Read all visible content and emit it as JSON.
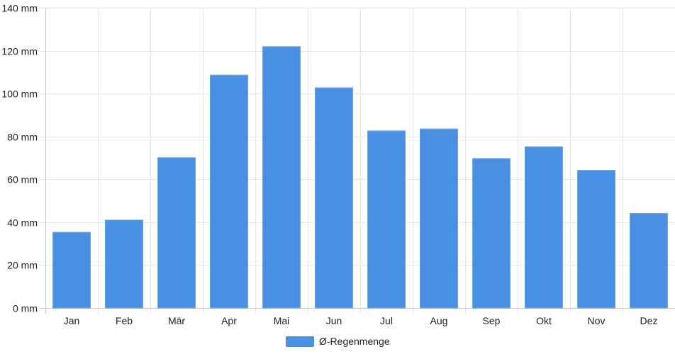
{
  "chart_data": {
    "type": "bar",
    "title": "",
    "xlabel": "",
    "ylabel": "",
    "y_unit": "mm",
    "categories": [
      "Jan",
      "Feb",
      "Mär",
      "Apr",
      "Mai",
      "Jun",
      "Jul",
      "Aug",
      "Sep",
      "Okt",
      "Nov",
      "Dez"
    ],
    "series": [
      {
        "name": "Ø-Regenmenge",
        "color": "#4a90e2",
        "values": [
          35.3,
          41.0,
          70.1,
          108.6,
          121.9,
          102.7,
          82.6,
          83.5,
          69.7,
          75.2,
          64.2,
          44.1
        ]
      }
    ],
    "ylim": [
      0,
      140
    ],
    "yticks": [
      "0 mm",
      "20 mm",
      "40 mm",
      "60 mm",
      "80 mm",
      "100 mm",
      "120 mm",
      "140 mm"
    ],
    "ytick_values": [
      0,
      20,
      40,
      60,
      80,
      100,
      120,
      140
    ],
    "grid": true,
    "legend_position": "bottom-center"
  }
}
